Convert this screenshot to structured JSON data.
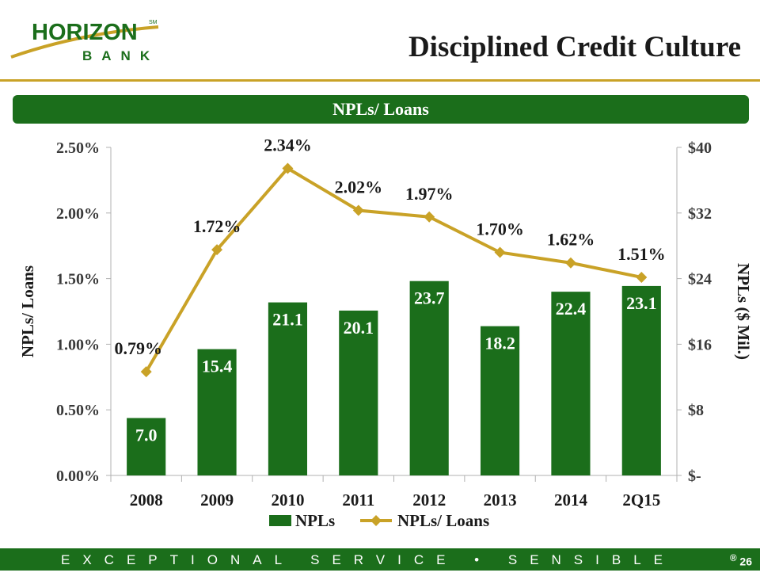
{
  "brand": {
    "name": "HORIZON",
    "trademark": "SM",
    "sub": "BANK",
    "colors": {
      "green": "#1b6e1b",
      "gold": "#c9a227"
    }
  },
  "slide": {
    "title": "Disciplined Credit Culture",
    "banner": "NPLs/ Loans"
  },
  "chart_data": {
    "type": "bar",
    "categories": [
      "2008",
      "2009",
      "2010",
      "2011",
      "2012",
      "2013",
      "2014",
      "2Q15"
    ],
    "series": [
      {
        "name": "NPLs",
        "type": "bar",
        "axis": "right",
        "values": [
          7.0,
          15.4,
          21.1,
          20.1,
          23.7,
          18.2,
          22.4,
          23.1
        ],
        "labels": [
          "7.0",
          "15.4",
          "21.1",
          "20.1",
          "23.7",
          "18.2",
          "22.4",
          "23.1"
        ],
        "color": "#1b6e1b"
      },
      {
        "name": "NPLs/ Loans",
        "type": "line",
        "axis": "left",
        "values": [
          0.79,
          1.72,
          2.34,
          2.02,
          1.97,
          1.7,
          1.62,
          1.51
        ],
        "labels": [
          "0.79%",
          "1.72%",
          "2.34%",
          "2.02%",
          "1.97%",
          "1.70%",
          "1.62%",
          "1.51%"
        ],
        "color": "#c9a227"
      }
    ],
    "left_axis": {
      "label": "NPLs/ Loans",
      "range": [
        0,
        2.5
      ],
      "ticks": [
        0,
        0.5,
        1.0,
        1.5,
        2.0,
        2.5
      ],
      "tick_labels": [
        "0.00%",
        "0.50%",
        "1.00%",
        "1.50%",
        "2.00%",
        "2.50%"
      ]
    },
    "right_axis": {
      "label": "NPLs ($ Mil.)",
      "range": [
        0,
        40
      ],
      "ticks": [
        0,
        8,
        16,
        24,
        32,
        40
      ],
      "tick_labels": [
        "$-",
        "$8",
        "$16",
        "$24",
        "$32",
        "$40"
      ]
    },
    "grid": false,
    "legend": "bottom"
  },
  "footer": {
    "tagline": "EXCEPTIONAL SERVICE • SENSIBLE ADVICE",
    "registered": "®",
    "page": "26"
  }
}
